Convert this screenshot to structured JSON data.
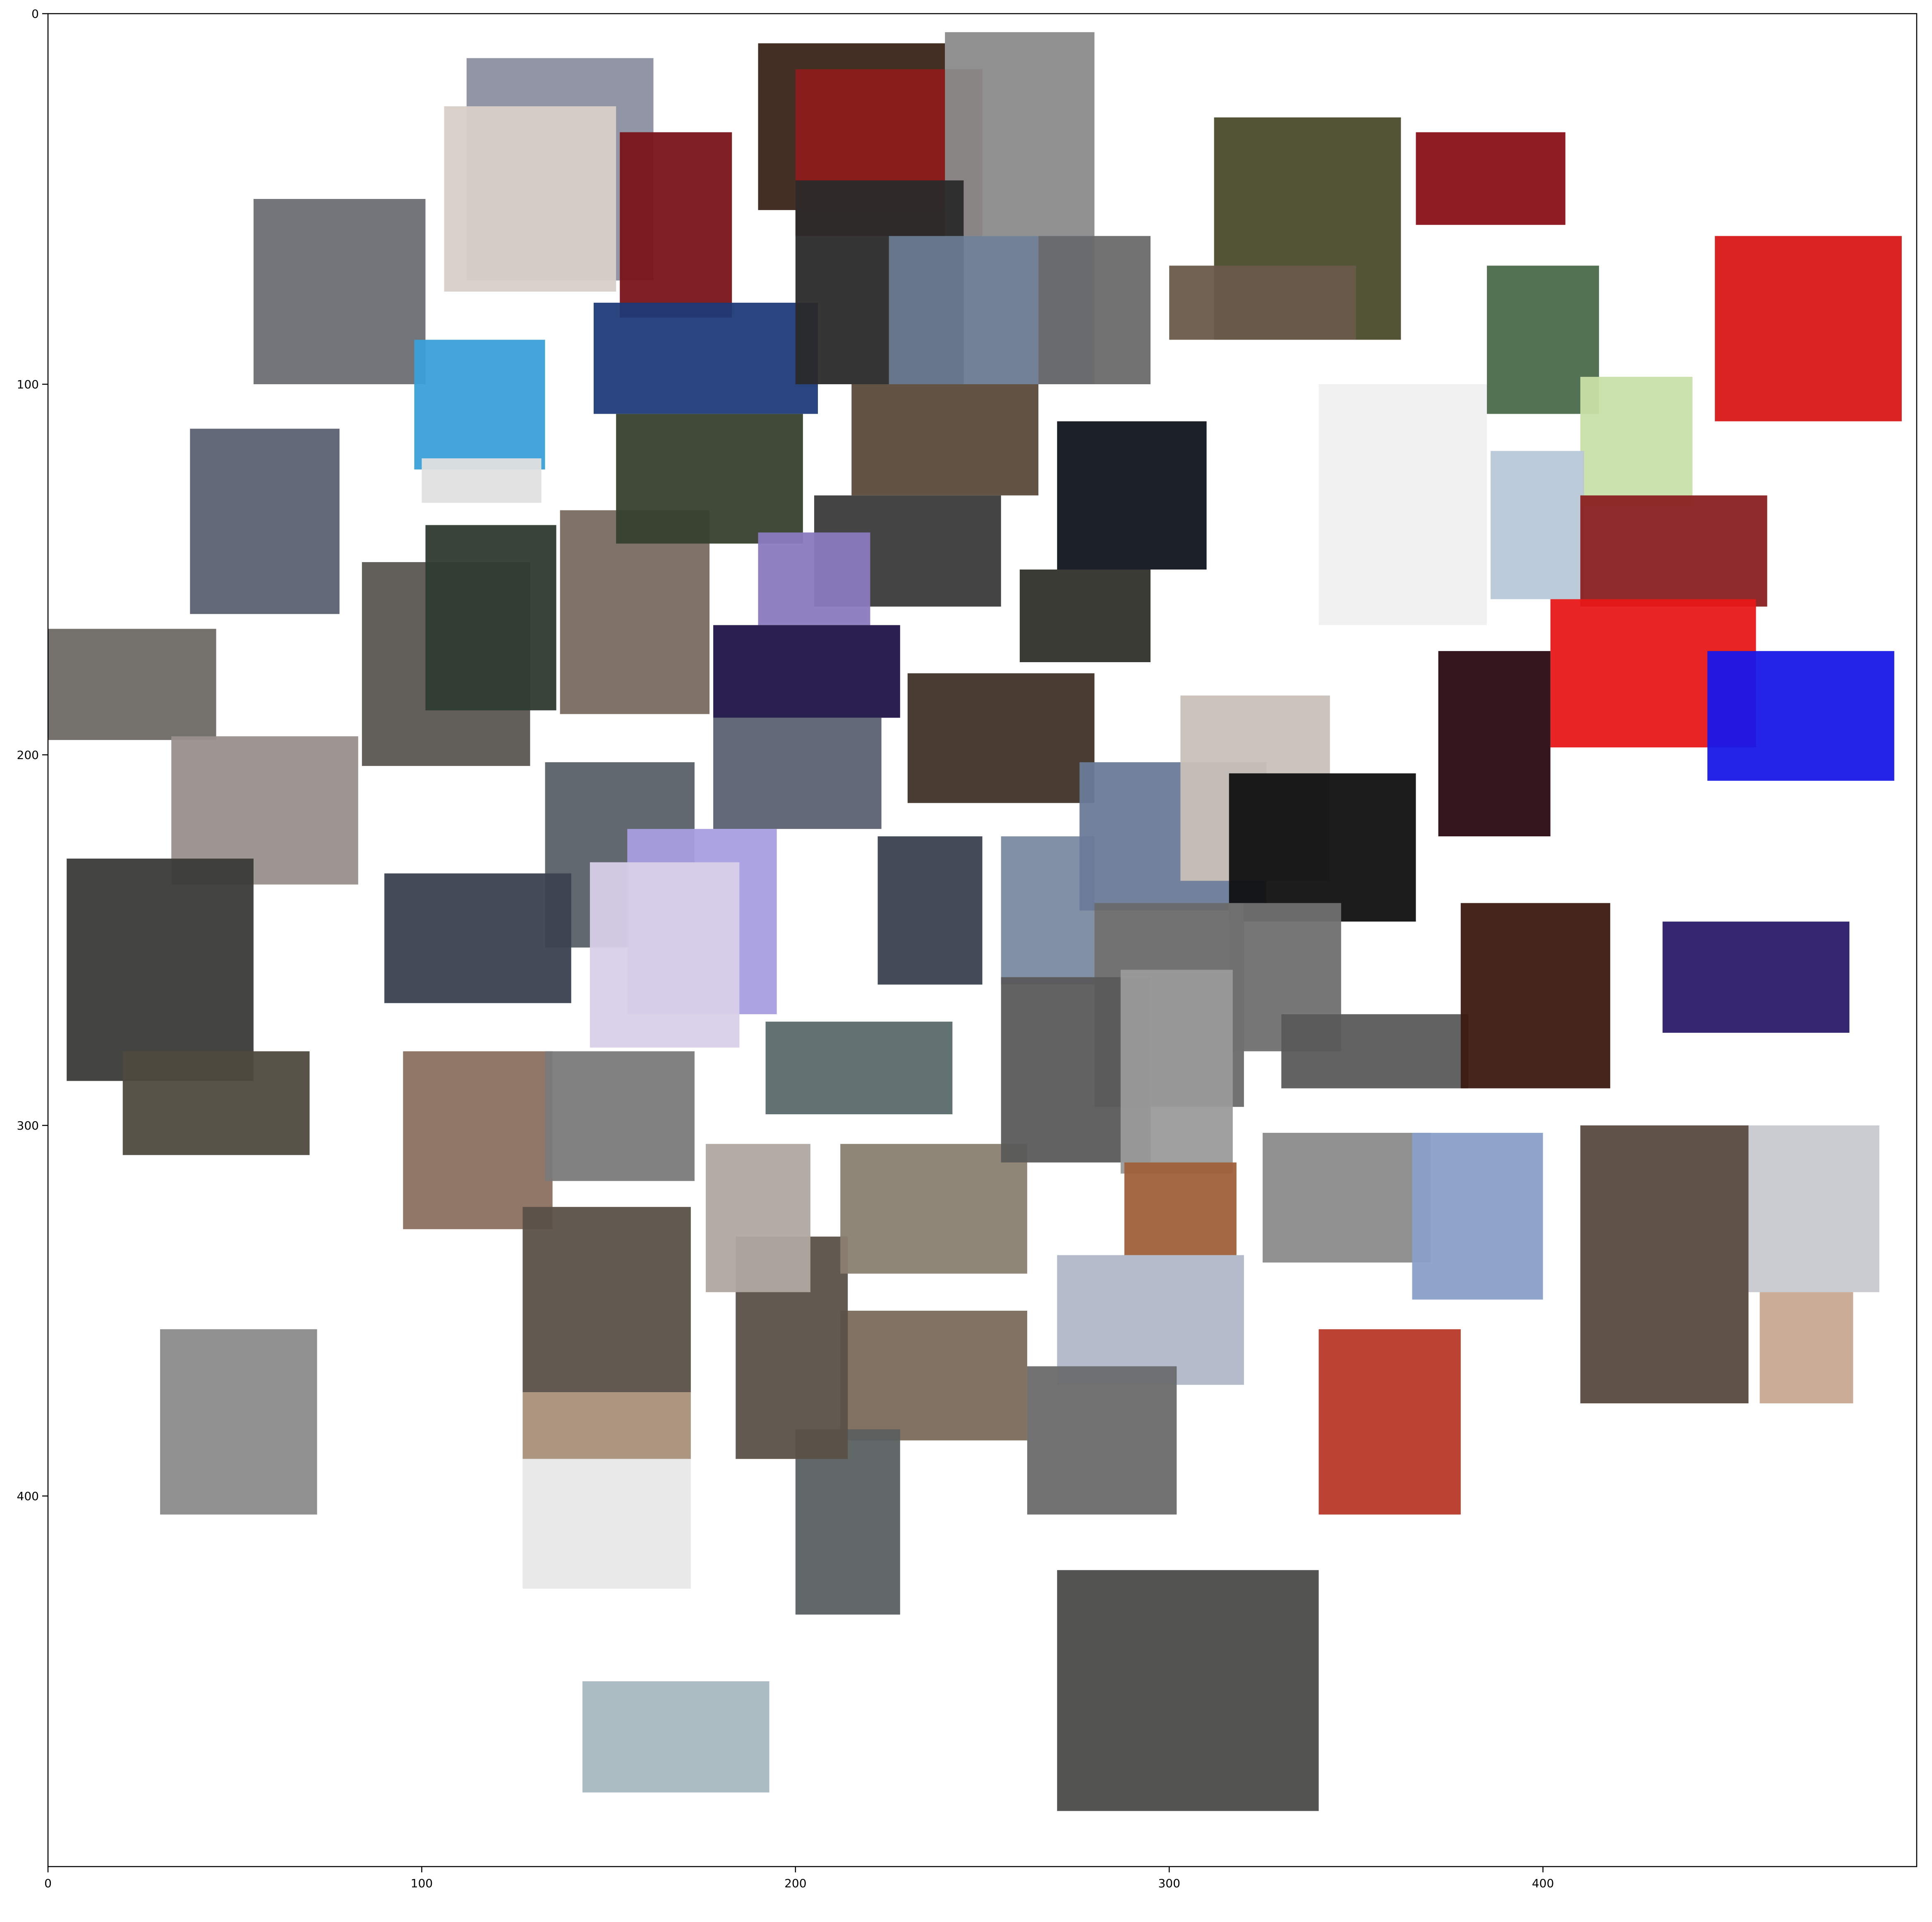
{
  "chart_data": {
    "type": "scatter",
    "title": "",
    "xlabel": "",
    "ylabel": "",
    "xlim": [
      0,
      500
    ],
    "ylim": [
      500,
      0
    ],
    "y_inverted": true,
    "grid": false,
    "x_ticks": [
      0,
      100,
      200,
      300,
      400
    ],
    "y_ticks": [
      0,
      100,
      200,
      300,
      400
    ],
    "x_tick_labels": [
      "0",
      "100",
      "200",
      "300",
      "400"
    ],
    "y_tick_labels": [
      "0",
      "100",
      "200",
      "300",
      "400"
    ],
    "thumbnails": [
      {
        "x": 112,
        "y": 12,
        "w": 50,
        "h": 60,
        "color": "#8c8fa0"
      },
      {
        "x": 106,
        "y": 25,
        "w": 46,
        "h": 50,
        "color": "#d9cfc8"
      },
      {
        "x": 55,
        "y": 50,
        "w": 46,
        "h": 50,
        "color": "#6a6e72"
      },
      {
        "x": 98,
        "y": 88,
        "w": 35,
        "h": 35,
        "color": "#3aa0d8"
      },
      {
        "x": 100,
        "y": 120,
        "w": 32,
        "h": 12,
        "color": "#e0e0e0"
      },
      {
        "x": 38,
        "y": 112,
        "w": 40,
        "h": 50,
        "color": "#5a6070"
      },
      {
        "x": 0,
        "y": 166,
        "w": 45,
        "h": 30,
        "color": "#6e6a66"
      },
      {
        "x": 33,
        "y": 195,
        "w": 50,
        "h": 40,
        "color": "#9a8f8c"
      },
      {
        "x": 5,
        "y": 228,
        "w": 50,
        "h": 60,
        "color": "#3a3a38"
      },
      {
        "x": 20,
        "y": 280,
        "w": 50,
        "h": 28,
        "color": "#4e4a3e"
      },
      {
        "x": 30,
        "y": 355,
        "w": 42,
        "h": 50,
        "color": "#8a8a8a"
      },
      {
        "x": 84,
        "y": 148,
        "w": 45,
        "h": 55,
        "color": "#5a5550"
      },
      {
        "x": 101,
        "y": 138,
        "w": 35,
        "h": 50,
        "color": "#2e3a30"
      },
      {
        "x": 137,
        "y": 134,
        "w": 40,
        "h": 55,
        "color": "#7a6a60"
      },
      {
        "x": 153,
        "y": 32,
        "w": 30,
        "h": 50,
        "color": "#7a1418"
      },
      {
        "x": 146,
        "y": 78,
        "w": 60,
        "h": 30,
        "color": "#1e3a78"
      },
      {
        "x": 152,
        "y": 108,
        "w": 50,
        "h": 35,
        "color": "#36402c"
      },
      {
        "x": 190,
        "y": 8,
        "w": 50,
        "h": 45,
        "color": "#3a2418"
      },
      {
        "x": 200,
        "y": 15,
        "w": 50,
        "h": 45,
        "color": "#8c1c1c"
      },
      {
        "x": 240,
        "y": 5,
        "w": 40,
        "h": 55,
        "color": "#8a8a8a"
      },
      {
        "x": 200,
        "y": 45,
        "w": 45,
        "h": 55,
        "color": "#2a2a2a"
      },
      {
        "x": 225,
        "y": 60,
        "w": 55,
        "h": 40,
        "color": "#6a7a90"
      },
      {
        "x": 265,
        "y": 60,
        "w": 30,
        "h": 40,
        "color": "#6a6a6a"
      },
      {
        "x": 215,
        "y": 100,
        "w": 50,
        "h": 30,
        "color": "#5a4a3a"
      },
      {
        "x": 205,
        "y": 130,
        "w": 50,
        "h": 30,
        "color": "#3a3a3a"
      },
      {
        "x": 190,
        "y": 140,
        "w": 30,
        "h": 25,
        "color": "#8a7ac0"
      },
      {
        "x": 270,
        "y": 110,
        "w": 40,
        "h": 40,
        "color": "#10141c"
      },
      {
        "x": 260,
        "y": 150,
        "w": 35,
        "h": 25,
        "color": "#30302a"
      },
      {
        "x": 178,
        "y": 165,
        "w": 50,
        "h": 25,
        "color": "#1e1448"
      },
      {
        "x": 178,
        "y": 190,
        "w": 45,
        "h": 30,
        "color": "#5a6070"
      },
      {
        "x": 230,
        "y": 178,
        "w": 50,
        "h": 35,
        "color": "#3e3228"
      },
      {
        "x": 133,
        "y": 202,
        "w": 40,
        "h": 50,
        "color": "#5a6068"
      },
      {
        "x": 155,
        "y": 220,
        "w": 40,
        "h": 50,
        "color": "#a89ee0"
      },
      {
        "x": 90,
        "y": 232,
        "w": 50,
        "h": 35,
        "color": "#3a4250"
      },
      {
        "x": 145,
        "y": 229,
        "w": 40,
        "h": 50,
        "color": "#d8d0e8"
      },
      {
        "x": 222,
        "y": 222,
        "w": 28,
        "h": 40,
        "color": "#3a4250"
      },
      {
        "x": 255,
        "y": 222,
        "w": 25,
        "h": 40,
        "color": "#7a8aa0"
      },
      {
        "x": 276,
        "y": 202,
        "w": 50,
        "h": 40,
        "color": "#6a7a98"
      },
      {
        "x": 303,
        "y": 184,
        "w": 40,
        "h": 50,
        "color": "#c8c0b8"
      },
      {
        "x": 316,
        "y": 205,
        "w": 50,
        "h": 40,
        "color": "#101010"
      },
      {
        "x": 280,
        "y": 240,
        "w": 40,
        "h": 55,
        "color": "#6a6a6a"
      },
      {
        "x": 316,
        "y": 240,
        "w": 30,
        "h": 40,
        "color": "#707070"
      },
      {
        "x": 330,
        "y": 270,
        "w": 50,
        "h": 20,
        "color": "#5a5a5a"
      },
      {
        "x": 378,
        "y": 240,
        "w": 40,
        "h": 50,
        "color": "#3a1a10"
      },
      {
        "x": 340,
        "y": 100,
        "w": 45,
        "h": 65,
        "color": "#f0f0f0"
      },
      {
        "x": 312,
        "y": 28,
        "w": 50,
        "h": 60,
        "color": "#4a4a2a"
      },
      {
        "x": 366,
        "y": 32,
        "w": 40,
        "h": 25,
        "color": "#8a1018"
      },
      {
        "x": 300,
        "y": 68,
        "w": 50,
        "h": 20,
        "color": "#6a5a4a"
      },
      {
        "x": 385,
        "y": 68,
        "w": 30,
        "h": 40,
        "color": "#4a6a4a"
      },
      {
        "x": 410,
        "y": 98,
        "w": 30,
        "h": 35,
        "color": "#c8e0a8"
      },
      {
        "x": 386,
        "y": 118,
        "w": 25,
        "h": 40,
        "color": "#b8c8d8"
      },
      {
        "x": 410,
        "y": 130,
        "w": 50,
        "h": 30,
        "color": "#8a2020"
      },
      {
        "x": 402,
        "y": 158,
        "w": 55,
        "h": 40,
        "color": "#e81818"
      },
      {
        "x": 372,
        "y": 172,
        "w": 30,
        "h": 50,
        "color": "#2a0a10"
      },
      {
        "x": 444,
        "y": 172,
        "w": 50,
        "h": 35,
        "color": "#1818e8"
      },
      {
        "x": 446,
        "y": 60,
        "w": 50,
        "h": 50,
        "color": "#d81818"
      },
      {
        "x": 432,
        "y": 245,
        "w": 50,
        "h": 30,
        "color": "#2a1a6a"
      },
      {
        "x": 325,
        "y": 302,
        "w": 45,
        "h": 35,
        "color": "#8a8a8a"
      },
      {
        "x": 365,
        "y": 302,
        "w": 35,
        "h": 45,
        "color": "#8aa0c8"
      },
      {
        "x": 410,
        "y": 300,
        "w": 45,
        "h": 75,
        "color": "#5a4a40"
      },
      {
        "x": 455,
        "y": 300,
        "w": 35,
        "h": 45,
        "color": "#c8c8d0"
      },
      {
        "x": 458,
        "y": 345,
        "w": 25,
        "h": 30,
        "color": "#c8a890"
      },
      {
        "x": 340,
        "y": 355,
        "w": 38,
        "h": 50,
        "color": "#b83828"
      },
      {
        "x": 270,
        "y": 335,
        "w": 50,
        "h": 35,
        "color": "#b0b8c8"
      },
      {
        "x": 262,
        "y": 365,
        "w": 40,
        "h": 40,
        "color": "#6a6a6a"
      },
      {
        "x": 212,
        "y": 350,
        "w": 50,
        "h": 35,
        "color": "#7a6a5a"
      },
      {
        "x": 200,
        "y": 382,
        "w": 28,
        "h": 50,
        "color": "#5a6060"
      },
      {
        "x": 184,
        "y": 330,
        "w": 30,
        "h": 60,
        "color": "#5a5048"
      },
      {
        "x": 212,
        "y": 305,
        "w": 50,
        "h": 35,
        "color": "#8a8070"
      },
      {
        "x": 255,
        "y": 260,
        "w": 40,
        "h": 50,
        "color": "#5a5a5a"
      },
      {
        "x": 287,
        "y": 258,
        "w": 30,
        "h": 55,
        "color": "#9a9a9a"
      },
      {
        "x": 288,
        "y": 310,
        "w": 30,
        "h": 25,
        "color": "#a0603a"
      },
      {
        "x": 192,
        "y": 272,
        "w": 50,
        "h": 25,
        "color": "#5a6a6a"
      },
      {
        "x": 176,
        "y": 305,
        "w": 28,
        "h": 40,
        "color": "#b0a8a0"
      },
      {
        "x": 95,
        "y": 280,
        "w": 40,
        "h": 48,
        "color": "#8a7060"
      },
      {
        "x": 133,
        "y": 280,
        "w": 40,
        "h": 35,
        "color": "#7a7a7a"
      },
      {
        "x": 127,
        "y": 322,
        "w": 45,
        "h": 50,
        "color": "#5a5048"
      },
      {
        "x": 127,
        "y": 372,
        "w": 45,
        "h": 18,
        "color": "#a89078"
      },
      {
        "x": 127,
        "y": 390,
        "w": 45,
        "h": 35,
        "color": "#e8e8e8"
      },
      {
        "x": 143,
        "y": 450,
        "w": 50,
        "h": 30,
        "color": "#a8b8c0"
      },
      {
        "x": 270,
        "y": 420,
        "w": 70,
        "h": 65,
        "color": "#4a4a48"
      }
    ]
  }
}
